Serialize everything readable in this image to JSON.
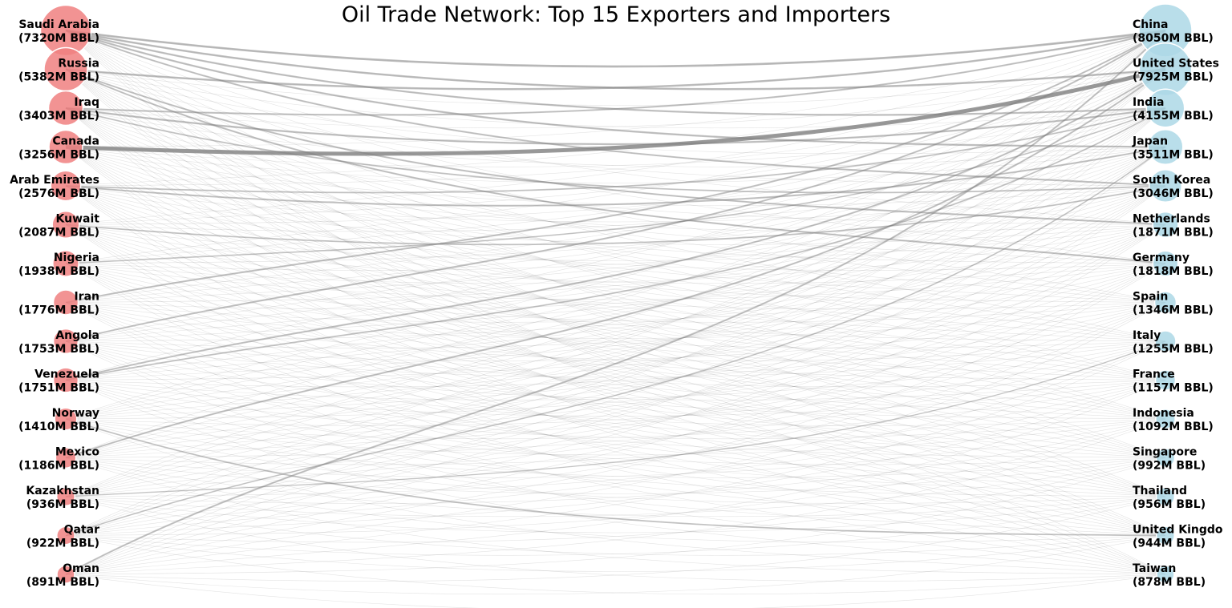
{
  "chart_data": {
    "type": "network",
    "title": "Oil Trade Network: Top 15 Exporters and Importers",
    "unit": "M BBL",
    "exporter_color": "#f08080",
    "importer_color": "#add8e6",
    "edge_color": "#808080",
    "exporters": [
      {
        "name": "Saudi Arabia",
        "volume": 7320,
        "label": "Saudi Arabia",
        "sublabel": "(7320M BBL)"
      },
      {
        "name": "Russia",
        "volume": 5382,
        "label": "Russia",
        "sublabel": "(5382M BBL)"
      },
      {
        "name": "Iraq",
        "volume": 3403,
        "label": "Iraq",
        "sublabel": "(3403M BBL)"
      },
      {
        "name": "Canada",
        "volume": 3256,
        "label": "Canada",
        "sublabel": "(3256M BBL)"
      },
      {
        "name": "Arab Emirates",
        "volume": 2576,
        "label": "Arab Emirates",
        "sublabel": "(2576M BBL)"
      },
      {
        "name": "Kuwait",
        "volume": 2087,
        "label": "Kuwait",
        "sublabel": "(2087M BBL)"
      },
      {
        "name": "Nigeria",
        "volume": 1938,
        "label": "Nigeria",
        "sublabel": "(1938M BBL)"
      },
      {
        "name": "Iran",
        "volume": 1776,
        "label": "Iran",
        "sublabel": "(1776M BBL)"
      },
      {
        "name": "Angola",
        "volume": 1753,
        "label": "Angola",
        "sublabel": "(1753M BBL)"
      },
      {
        "name": "Venezuela",
        "volume": 1751,
        "label": "Venezuela",
        "sublabel": "(1751M BBL)"
      },
      {
        "name": "Norway",
        "volume": 1410,
        "label": "Norway",
        "sublabel": "(1410M BBL)"
      },
      {
        "name": "Mexico",
        "volume": 1186,
        "label": "Mexico",
        "sublabel": "(1186M BBL)"
      },
      {
        "name": "Kazakhstan",
        "volume": 936,
        "label": "Kazakhstan",
        "sublabel": "(936M BBL)"
      },
      {
        "name": "Qatar",
        "volume": 922,
        "label": "Qatar",
        "sublabel": "(922M BBL)"
      },
      {
        "name": "Oman",
        "volume": 891,
        "label": "Oman",
        "sublabel": "(891M BBL)"
      }
    ],
    "importers": [
      {
        "name": "China",
        "volume": 8050,
        "label": "China",
        "sublabel": "(8050M BBL)"
      },
      {
        "name": "United States",
        "volume": 7925,
        "label": "United States",
        "sublabel": "(7925M BBL)"
      },
      {
        "name": "India",
        "volume": 4155,
        "label": "India",
        "sublabel": "(4155M BBL)"
      },
      {
        "name": "Japan",
        "volume": 3511,
        "label": "Japan",
        "sublabel": "(3511M BBL)"
      },
      {
        "name": "South Korea",
        "volume": 3046,
        "label": "South Korea",
        "sublabel": "(3046M BBL)"
      },
      {
        "name": "Netherlands",
        "volume": 1871,
        "label": "Netherlands",
        "sublabel": "(1871M BBL)"
      },
      {
        "name": "Germany",
        "volume": 1818,
        "label": "Germany",
        "sublabel": "(1818M BBL)"
      },
      {
        "name": "Spain",
        "volume": 1346,
        "label": "Spain",
        "sublabel": "(1346M BBL)"
      },
      {
        "name": "Italy",
        "volume": 1255,
        "label": "Italy",
        "sublabel": "(1255M BBL)"
      },
      {
        "name": "France",
        "volume": 1157,
        "label": "France",
        "sublabel": "(1157M BBL)"
      },
      {
        "name": "Indonesia",
        "volume": 1092,
        "label": "Indonesia",
        "sublabel": "(1092M BBL)"
      },
      {
        "name": "Singapore",
        "volume": 992,
        "label": "Singapore",
        "sublabel": "(992M BBL)"
      },
      {
        "name": "Thailand",
        "volume": 956,
        "label": "Thailand",
        "sublabel": "(956M BBL)"
      },
      {
        "name": "United Kingdom",
        "volume": 944,
        "label": "United Kingdo",
        "sublabel": "(944M BBL)"
      },
      {
        "name": "Taiwan",
        "volume": 878,
        "label": "Taiwan",
        "sublabel": "(878M BBL)"
      }
    ],
    "highlight_edges": [
      {
        "from": "Canada",
        "to": "United States",
        "weight": 1.0
      },
      {
        "from": "Saudi Arabia",
        "to": "China",
        "weight": 0.45
      },
      {
        "from": "Saudi Arabia",
        "to": "United States",
        "weight": 0.4
      },
      {
        "from": "Saudi Arabia",
        "to": "India",
        "weight": 0.35
      },
      {
        "from": "Saudi Arabia",
        "to": "Japan",
        "weight": 0.35
      },
      {
        "from": "Saudi Arabia",
        "to": "South Korea",
        "weight": 0.3
      },
      {
        "from": "Russia",
        "to": "China",
        "weight": 0.4
      },
      {
        "from": "Russia",
        "to": "Netherlands",
        "weight": 0.3
      },
      {
        "from": "Russia",
        "to": "Germany",
        "weight": 0.3
      },
      {
        "from": "Iraq",
        "to": "China",
        "weight": 0.3
      },
      {
        "from": "Iraq",
        "to": "India",
        "weight": 0.35
      },
      {
        "from": "Iraq",
        "to": "South Korea",
        "weight": 0.25
      },
      {
        "from": "Arab Emirates",
        "to": "Japan",
        "weight": 0.3
      },
      {
        "from": "Arab Emirates",
        "to": "India",
        "weight": 0.25
      },
      {
        "from": "Kuwait",
        "to": "South Korea",
        "weight": 0.25
      },
      {
        "from": "Iran",
        "to": "China",
        "weight": 0.3
      },
      {
        "from": "Angola",
        "to": "China",
        "weight": 0.3
      },
      {
        "from": "Venezuela",
        "to": "United States",
        "weight": 0.3
      },
      {
        "from": "Venezuela",
        "to": "India",
        "weight": 0.25
      },
      {
        "from": "Norway",
        "to": "United Kingdom",
        "weight": 0.25
      },
      {
        "from": "Mexico",
        "to": "United States",
        "weight": 0.3
      },
      {
        "from": "Oman",
        "to": "China",
        "weight": 0.3
      },
      {
        "from": "Qatar",
        "to": "Japan",
        "weight": 0.2
      },
      {
        "from": "Nigeria",
        "to": "India",
        "weight": 0.2
      },
      {
        "from": "Kazakhstan",
        "to": "Italy",
        "weight": 0.15
      }
    ]
  }
}
